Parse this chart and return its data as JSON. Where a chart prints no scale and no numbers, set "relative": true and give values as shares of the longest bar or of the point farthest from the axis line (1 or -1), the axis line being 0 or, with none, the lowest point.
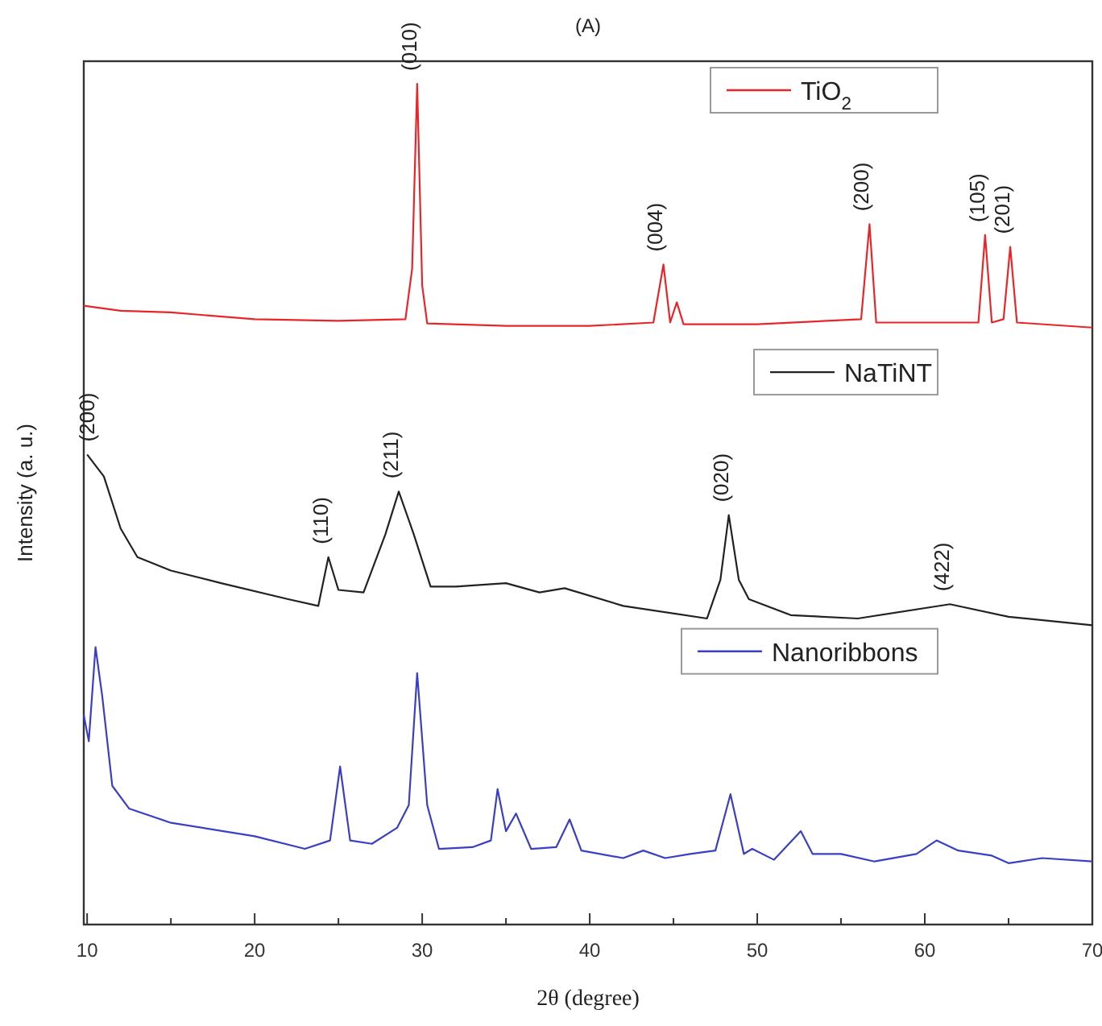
{
  "chart_data": {
    "type": "line",
    "title": "(A)",
    "xlabel": "2θ (degree)",
    "ylabel": "Intensity (a. u.)",
    "relative": true,
    "xlim": [
      9.8,
      70
    ],
    "xticks": [
      10,
      {
        "value": 15,
        "label": null
      },
      20,
      {
        "value": 25,
        "label": null
      },
      30,
      {
        "value": 35,
        "label": null
      },
      40,
      {
        "value": 45,
        "label": null
      },
      50,
      {
        "value": 55,
        "label": null
      },
      60,
      {
        "value": 65,
        "label": null
      },
      70
    ],
    "tick_labels": "x",
    "legend": "right",
    "grid": false,
    "marker": "none",
    "line_style": "solid",
    "series": [
      {
        "name": "TiO$_{2}$",
        "color": "#e8262a",
        "x": [
          9.8,
          12,
          15,
          20,
          25,
          29,
          29.4,
          29.7,
          30.0,
          30.3,
          35,
          40,
          43.8,
          44.4,
          44.8,
          45.2,
          45.6,
          50,
          56.2,
          56.7,
          57.1,
          60,
          63.2,
          63.6,
          64.0,
          64.7,
          65.1,
          65.5,
          70
        ],
        "values": [
          0.736,
          0.73,
          0.728,
          0.72,
          0.718,
          0.72,
          0.78,
          1,
          0.76,
          0.715,
          0.712,
          0.712,
          0.716,
          0.785,
          0.716,
          0.74,
          0.714,
          0.714,
          0.72,
          0.833,
          0.716,
          0.716,
          0.716,
          0.82,
          0.716,
          0.72,
          0.806,
          0.716,
          0.71
        ]
      },
      {
        "name": "NaTiNT",
        "color": "#222222",
        "x": [
          10,
          11,
          12,
          13,
          15,
          18,
          22,
          23.8,
          24.4,
          25,
          26.5,
          27.8,
          28.6,
          29.5,
          30.5,
          32,
          35,
          37,
          38.5,
          42,
          47,
          47.8,
          48.3,
          48.9,
          49.5,
          52,
          56,
          61.5,
          65,
          70
        ],
        "values": [
          0.559,
          0.533,
          0.471,
          0.437,
          0.421,
          0.406,
          0.387,
          0.379,
          0.437,
          0.398,
          0.395,
          0.464,
          0.515,
          0.464,
          0.402,
          0.402,
          0.406,
          0.395,
          0.4,
          0.379,
          0.364,
          0.41,
          0.487,
          0.41,
          0.387,
          0.368,
          0.364,
          0.381,
          0.366,
          0.356
        ]
      },
      {
        "name": "Nanoribbons",
        "color": "#3a3fc4",
        "x": [
          9.8,
          10.1,
          10.5,
          10.9,
          11.5,
          12.5,
          15,
          20,
          23,
          24.5,
          25.1,
          25.7,
          27,
          28.5,
          29.2,
          29.7,
          30.3,
          31,
          33,
          34.1,
          34.5,
          35,
          35.6,
          36.5,
          38,
          38.8,
          39.5,
          42,
          43.2,
          44.5,
          46,
          47.5,
          48.4,
          49.2,
          49.7,
          51,
          52.6,
          53.3,
          55,
          57,
          59.5,
          60.7,
          62,
          64,
          65,
          67,
          70
        ],
        "values": [
          0.249,
          0.218,
          0.33,
          0.272,
          0.165,
          0.138,
          0.121,
          0.105,
          0.09,
          0.1,
          0.188,
          0.1,
          0.096,
          0.115,
          0.142,
          0.299,
          0.142,
          0.09,
          0.092,
          0.1,
          0.161,
          0.111,
          0.132,
          0.09,
          0.092,
          0.125,
          0.088,
          0.079,
          0.088,
          0.079,
          0.084,
          0.088,
          0.155,
          0.084,
          0.09,
          0.077,
          0.111,
          0.084,
          0.084,
          0.075,
          0.084,
          0.1,
          0.088,
          0.082,
          0.073,
          0.079,
          0.075
        ]
      }
    ],
    "annotations": [
      {
        "text": "(010)",
        "x": 29.7,
        "y": 1
      },
      {
        "text": "(004)",
        "x": 44.4,
        "y": 0.785
      },
      {
        "text": "(200)",
        "x": 56.7,
        "y": 0.833
      },
      {
        "text": "(105)",
        "x": 63.6,
        "y": 0.82
      },
      {
        "text": "(201)",
        "x": 65.1,
        "y": 0.806
      },
      {
        "text": "(200)",
        "x": 10.5,
        "y": 0.559
      },
      {
        "text": "(110)",
        "x": 24.4,
        "y": 0.437
      },
      {
        "text": "(211)",
        "x": 28.6,
        "y": 0.515
      },
      {
        "text": "(020)",
        "x": 48.3,
        "y": 0.487
      },
      {
        "text": "(422)",
        "x": 61.5,
        "y": 0.381
      }
    ]
  }
}
